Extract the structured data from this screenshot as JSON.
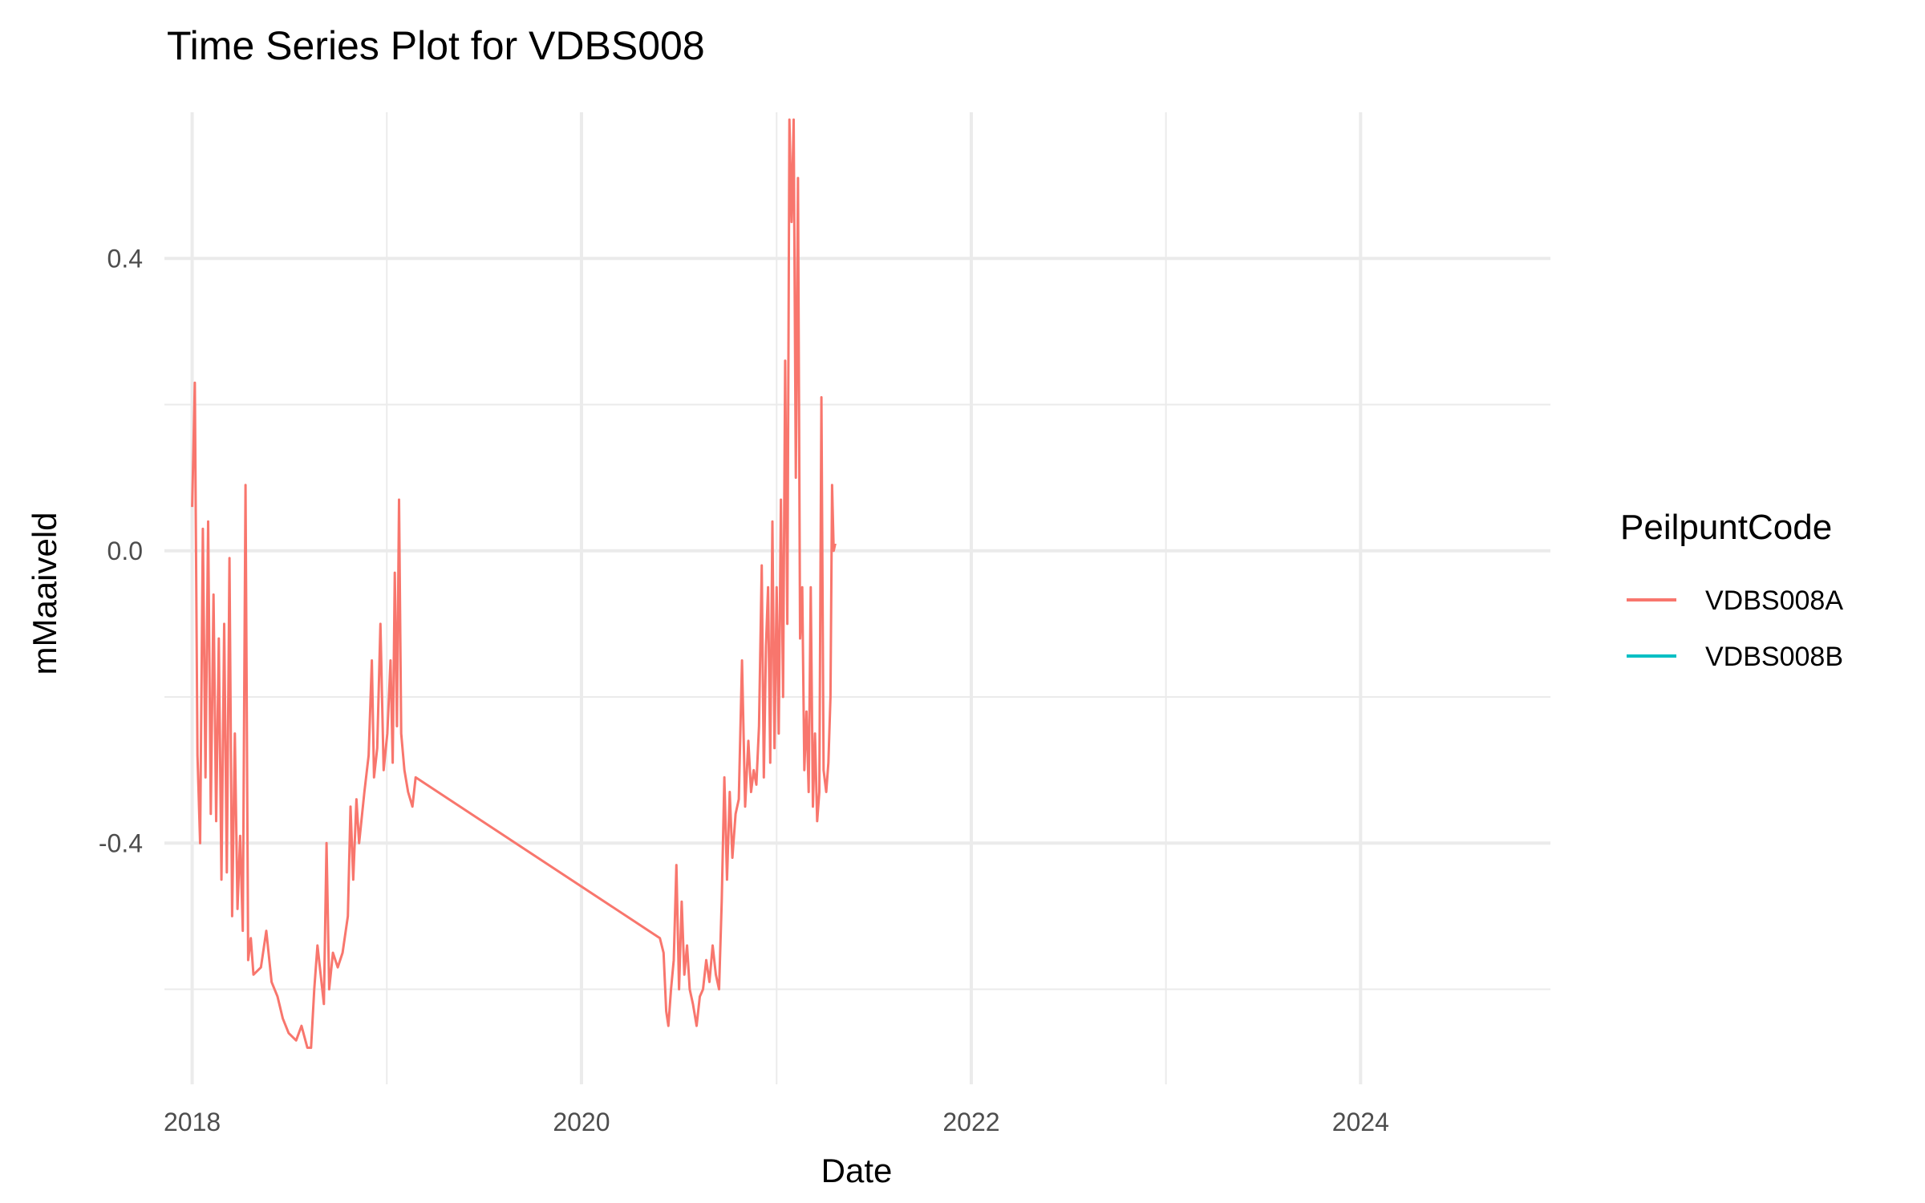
{
  "chart_data": {
    "type": "line",
    "title": "Time Series Plot for VDBS008",
    "xlabel": "Date",
    "ylabel": "mMaaiveld",
    "xlim": [
      "2017-11-10",
      "2024-12-22"
    ],
    "ylim": [
      -0.73,
      0.6
    ],
    "x_ticks": [
      "2018-01-01",
      "2020-01-01",
      "2022-01-01",
      "2024-01-01"
    ],
    "x_tick_labels": [
      "2018",
      "2020",
      "2022",
      "2024"
    ],
    "x_minor_ticks": [
      "2019-01-01",
      "2021-01-01",
      "2023-01-01"
    ],
    "y_ticks": [
      -0.4,
      0.0,
      0.4
    ],
    "y_tick_labels": [
      "-0.4",
      "0.0",
      "0.4"
    ],
    "y_minor_ticks": [
      -0.6,
      -0.2,
      0.2
    ],
    "grid": true,
    "legend": {
      "title": "PeilpuntCode",
      "placement": "right"
    },
    "series": [
      {
        "name": "VDBS008A",
        "color": "#F8766D",
        "points": [
          [
            "2018-01-01",
            0.06
          ],
          [
            "2018-01-06",
            0.23
          ],
          [
            "2018-01-11",
            -0.28
          ],
          [
            "2018-01-16",
            -0.4
          ],
          [
            "2018-01-21",
            0.03
          ],
          [
            "2018-01-26",
            -0.31
          ],
          [
            "2018-01-31",
            0.04
          ],
          [
            "2018-02-05",
            -0.36
          ],
          [
            "2018-02-10",
            -0.06
          ],
          [
            "2018-02-15",
            -0.37
          ],
          [
            "2018-02-20",
            -0.12
          ],
          [
            "2018-02-25",
            -0.45
          ],
          [
            "2018-03-02",
            -0.1
          ],
          [
            "2018-03-07",
            -0.44
          ],
          [
            "2018-03-12",
            -0.01
          ],
          [
            "2018-03-17",
            -0.5
          ],
          [
            "2018-03-22",
            -0.25
          ],
          [
            "2018-03-27",
            -0.49
          ],
          [
            "2018-04-01",
            -0.39
          ],
          [
            "2018-04-06",
            -0.52
          ],
          [
            "2018-04-11",
            0.09
          ],
          [
            "2018-04-16",
            -0.56
          ],
          [
            "2018-04-21",
            -0.53
          ],
          [
            "2018-04-26",
            -0.58
          ],
          [
            "2018-05-10",
            -0.57
          ],
          [
            "2018-05-20",
            -0.52
          ],
          [
            "2018-05-30",
            -0.59
          ],
          [
            "2018-06-10",
            -0.61
          ],
          [
            "2018-06-20",
            -0.64
          ],
          [
            "2018-07-01",
            -0.66
          ],
          [
            "2018-07-15",
            -0.67
          ],
          [
            "2018-07-25",
            -0.65
          ],
          [
            "2018-08-05",
            -0.68
          ],
          [
            "2018-08-12",
            -0.68
          ],
          [
            "2018-08-18",
            -0.6
          ],
          [
            "2018-08-24",
            -0.54
          ],
          [
            "2018-08-30",
            -0.58
          ],
          [
            "2018-09-05",
            -0.62
          ],
          [
            "2018-09-10",
            -0.4
          ],
          [
            "2018-09-15",
            -0.6
          ],
          [
            "2018-09-22",
            -0.55
          ],
          [
            "2018-10-01",
            -0.57
          ],
          [
            "2018-10-10",
            -0.55
          ],
          [
            "2018-10-20",
            -0.5
          ],
          [
            "2018-10-25",
            -0.35
          ],
          [
            "2018-10-30",
            -0.45
          ],
          [
            "2018-11-05",
            -0.34
          ],
          [
            "2018-11-10",
            -0.4
          ],
          [
            "2018-11-20",
            -0.33
          ],
          [
            "2018-11-28",
            -0.28
          ],
          [
            "2018-12-04",
            -0.15
          ],
          [
            "2018-12-08",
            -0.31
          ],
          [
            "2018-12-14",
            -0.27
          ],
          [
            "2018-12-20",
            -0.1
          ],
          [
            "2018-12-26",
            -0.3
          ],
          [
            "2019-01-02",
            -0.25
          ],
          [
            "2019-01-08",
            -0.15
          ],
          [
            "2019-01-12",
            -0.29
          ],
          [
            "2019-01-16",
            -0.03
          ],
          [
            "2019-01-20",
            -0.24
          ],
          [
            "2019-01-24",
            0.07
          ],
          [
            "2019-01-28",
            -0.25
          ],
          [
            "2019-02-03",
            -0.3
          ],
          [
            "2019-02-10",
            -0.33
          ],
          [
            "2019-02-18",
            -0.35
          ],
          [
            "2019-02-24",
            -0.31
          ],
          [
            "2020-05-27",
            -0.53
          ],
          [
            "2020-06-03",
            -0.55
          ],
          [
            "2020-06-08",
            -0.63
          ],
          [
            "2020-06-12",
            -0.65
          ],
          [
            "2020-06-17",
            -0.6
          ],
          [
            "2020-06-22",
            -0.56
          ],
          [
            "2020-06-27",
            -0.43
          ],
          [
            "2020-07-02",
            -0.6
          ],
          [
            "2020-07-07",
            -0.48
          ],
          [
            "2020-07-12",
            -0.58
          ],
          [
            "2020-07-17",
            -0.54
          ],
          [
            "2020-07-22",
            -0.6
          ],
          [
            "2020-07-28",
            -0.62
          ],
          [
            "2020-08-04",
            -0.65
          ],
          [
            "2020-08-10",
            -0.61
          ],
          [
            "2020-08-16",
            -0.6
          ],
          [
            "2020-08-22",
            -0.56
          ],
          [
            "2020-08-28",
            -0.59
          ],
          [
            "2020-09-03",
            -0.54
          ],
          [
            "2020-09-09",
            -0.58
          ],
          [
            "2020-09-15",
            -0.6
          ],
          [
            "2020-09-20",
            -0.48
          ],
          [
            "2020-09-25",
            -0.31
          ],
          [
            "2020-09-30",
            -0.45
          ],
          [
            "2020-10-05",
            -0.33
          ],
          [
            "2020-10-10",
            -0.42
          ],
          [
            "2020-10-16",
            -0.36
          ],
          [
            "2020-10-22",
            -0.34
          ],
          [
            "2020-10-28",
            -0.15
          ],
          [
            "2020-11-03",
            -0.35
          ],
          [
            "2020-11-09",
            -0.26
          ],
          [
            "2020-11-14",
            -0.33
          ],
          [
            "2020-11-19",
            -0.3
          ],
          [
            "2020-11-24",
            -0.32
          ],
          [
            "2020-11-29",
            -0.24
          ],
          [
            "2020-12-04",
            -0.02
          ],
          [
            "2020-12-08",
            -0.31
          ],
          [
            "2020-12-12",
            -0.13
          ],
          [
            "2020-12-16",
            -0.05
          ],
          [
            "2020-12-20",
            -0.29
          ],
          [
            "2020-12-24",
            0.04
          ],
          [
            "2020-12-28",
            -0.27
          ],
          [
            "2021-01-01",
            -0.05
          ],
          [
            "2021-01-05",
            -0.25
          ],
          [
            "2021-01-09",
            0.07
          ],
          [
            "2021-01-13",
            -0.2
          ],
          [
            "2021-01-17",
            0.26
          ],
          [
            "2021-01-21",
            -0.1
          ],
          [
            "2021-01-25",
            0.59
          ],
          [
            "2021-01-29",
            0.45
          ],
          [
            "2021-02-02",
            0.59
          ],
          [
            "2021-02-06",
            0.1
          ],
          [
            "2021-02-10",
            0.51
          ],
          [
            "2021-02-14",
            -0.12
          ],
          [
            "2021-02-18",
            -0.05
          ],
          [
            "2021-02-22",
            -0.3
          ],
          [
            "2021-02-26",
            -0.22
          ],
          [
            "2021-03-02",
            -0.33
          ],
          [
            "2021-03-06",
            -0.05
          ],
          [
            "2021-03-10",
            -0.35
          ],
          [
            "2021-03-14",
            -0.25
          ],
          [
            "2021-03-18",
            -0.37
          ],
          [
            "2021-03-22",
            -0.33
          ],
          [
            "2021-03-26",
            0.21
          ],
          [
            "2021-03-30",
            -0.3
          ],
          [
            "2021-04-04",
            -0.33
          ],
          [
            "2021-04-08",
            -0.29
          ],
          [
            "2021-04-12",
            -0.2
          ],
          [
            "2021-04-15",
            0.09
          ],
          [
            "2021-04-18",
            0.0
          ],
          [
            "2021-04-21",
            0.01
          ]
        ]
      },
      {
        "name": "VDBS008B",
        "color": "#00BFC4",
        "points": []
      }
    ]
  }
}
